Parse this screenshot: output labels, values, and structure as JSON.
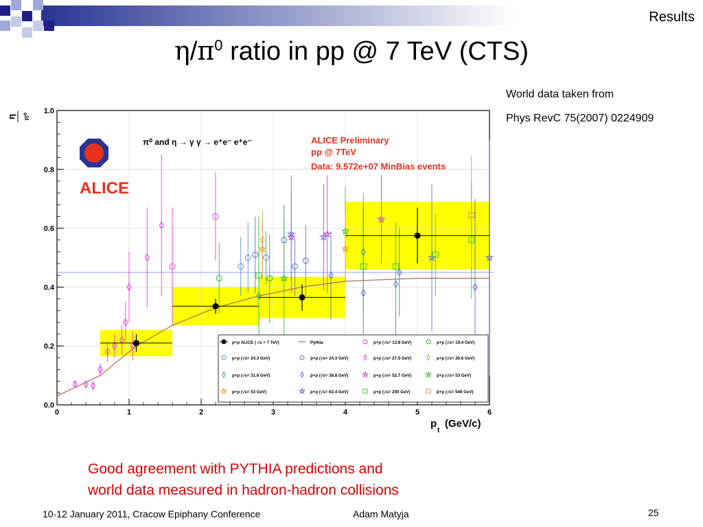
{
  "slide": {
    "section": "Results",
    "title_eta": "η",
    "title_slash": "/",
    "title_pi": "π",
    "title_sup": "0",
    "title_rest": " ratio in pp @ 7 TeV (CTS)",
    "note_line1": "World data taken from",
    "note_line2": "Phys RevC 75(2007) 0224909",
    "red_line1": "Good agreement with PYTHIA predictions and",
    "red_line2": "world data measured in hadron-hadron collisions",
    "footer_left": "10-12 January 2011, Cracow Epiphany Conference",
    "footer_author": "Adam Matyja",
    "page_number": "25"
  },
  "colors": {
    "square_blue": "#1f1f8a",
    "square_light": "#9fa8d8",
    "bar_start": "#283593",
    "alice_red": "#e8301c",
    "band_yellow": "#ffff00",
    "red_text": "#e00000"
  },
  "chart_data": {
    "type": "scatter",
    "xlabel_main": "p",
    "xlabel_sub": "t",
    "xlabel_unit": "(GeV/c)",
    "ylabel_top": "η",
    "ylabel_bottom": "π⁰",
    "xlim": [
      0,
      6
    ],
    "ylim": [
      0,
      1.0
    ],
    "x_ticks": [
      0,
      1,
      2,
      3,
      4,
      5,
      6
    ],
    "y_ticks": [
      0.0,
      0.2,
      0.4,
      0.6,
      0.8,
      1.0
    ],
    "y_tick_labels": [
      "0.0",
      "0.2",
      "0.4",
      "0.6",
      "0.8",
      "1.0"
    ],
    "grid": true,
    "logo_text": "ALICE",
    "decay_label": "π⁰ and η → γ γ → e⁺e⁻  e⁺e⁻",
    "preliminary_line1": "ALICE Preliminary",
    "preliminary_line2": "pp @ 7TeV",
    "preliminary_line3": "Data: 9.572e+07  MinBias events",
    "reference_line_y": 0.45,
    "alice": {
      "name": "p+p ALICE ( √s = 7 TeV)",
      "points": [
        {
          "x": 1.1,
          "y": 0.21,
          "xlo": 0.6,
          "xhi": 1.6,
          "sys": 0.045,
          "stat": 0.03
        },
        {
          "x": 2.2,
          "y": 0.335,
          "xlo": 1.6,
          "xhi": 2.8,
          "sys": 0.065,
          "stat": 0.025
        },
        {
          "x": 3.4,
          "y": 0.365,
          "xlo": 2.8,
          "xhi": 4.0,
          "sys": 0.07,
          "stat": 0.045
        },
        {
          "x": 5.0,
          "y": 0.575,
          "xlo": 4.0,
          "xhi": 6.0,
          "sys": 0.115,
          "stat": 0.095
        }
      ]
    },
    "pythia": {
      "name": "Pythia",
      "x": [
        0,
        0.6,
        1.1,
        1.6,
        2.2,
        2.8,
        3.4,
        4.0,
        5.0,
        6.0
      ],
      "y": [
        0.03,
        0.1,
        0.2,
        0.27,
        0.33,
        0.37,
        0.4,
        0.42,
        0.43,
        0.43
      ]
    },
    "world_data": [
      {
        "name": "p+p (√s= 13.8 GeV)",
        "color": "#e040e0",
        "marker": "circle",
        "points": [
          {
            "x": 2.2,
            "y": 0.64,
            "e": 0.15
          },
          {
            "x": 1.6,
            "y": 0.47,
            "e": 0.2
          }
        ]
      },
      {
        "name": "p+p (√s= 19.4 GeV)",
        "color": "#33b233",
        "marker": "circle",
        "points": [
          {
            "x": 2.25,
            "y": 0.43,
            "e": 0.12
          },
          {
            "x": 2.95,
            "y": 0.43,
            "e": 0.15
          }
        ]
      },
      {
        "name": "p+p (√s= 24.3 GeV)",
        "color": "#5b8fbf",
        "marker": "circle",
        "points": [
          {
            "x": 2.55,
            "y": 0.47,
            "e": 0.1
          },
          {
            "x": 2.9,
            "y": 0.5,
            "e": 0.09
          },
          {
            "x": 2.65,
            "y": 0.5,
            "e": 0.12
          }
        ]
      },
      {
        "name": "p̅+p (√s= 24.3 GeV)",
        "color": "#5b6fd6",
        "marker": "circle",
        "points": [
          {
            "x": 2.75,
            "y": 0.51,
            "e": 0.13
          },
          {
            "x": 3.15,
            "y": 0.56,
            "e": 0.12
          },
          {
            "x": 3.3,
            "y": 0.47,
            "e": 0.1
          },
          {
            "x": 3.45,
            "y": 0.49,
            "e": 0.12
          }
        ]
      },
      {
        "name": "p+p (√s= 27.5 GeV)",
        "color": "#e040e0",
        "marker": "diamond",
        "points": [
          {
            "x": 0.25,
            "y": 0.07,
            "e": 0.012
          },
          {
            "x": 0.4,
            "y": 0.07,
            "e": 0.012
          },
          {
            "x": 0.5,
            "y": 0.065,
            "e": 0.015
          },
          {
            "x": 0.6,
            "y": 0.12,
            "e": 0.02
          },
          {
            "x": 0.7,
            "y": 0.18,
            "e": 0.035
          },
          {
            "x": 0.8,
            "y": 0.2,
            "e": 0.04
          },
          {
            "x": 0.9,
            "y": 0.22,
            "e": 0.05
          },
          {
            "x": 0.95,
            "y": 0.28,
            "e": 0.07
          },
          {
            "x": 1.0,
            "y": 0.4,
            "e": 0.12
          },
          {
            "x": 1.25,
            "y": 0.5,
            "e": 0.17
          },
          {
            "x": 1.45,
            "y": 0.61,
            "e": 0.24
          },
          {
            "x": 1.05,
            "y": 0.2,
            "e": 0.05
          }
        ]
      },
      {
        "name": "p+p (√s= 30.6 GeV)",
        "color": "#e0a030",
        "marker": "diamond",
        "points": [
          {
            "x": 2.85,
            "y": 0.56,
            "e": 0.1
          }
        ]
      },
      {
        "name": "p+p (√s= 31.6 GeV)",
        "color": "#3aa0a0",
        "marker": "diamond",
        "points": [
          {
            "x": 2.8,
            "y": 0.37,
            "e": 0.18
          },
          {
            "x": 4.25,
            "y": 0.52,
            "e": 0.2
          }
        ]
      },
      {
        "name": "p̅+p (√s= 38.8 GeV)",
        "color": "#5b6fd6",
        "marker": "diamond",
        "points": [
          {
            "x": 3.8,
            "y": 0.44,
            "e": 0.15
          },
          {
            "x": 4.25,
            "y": 0.38,
            "e": 0.3
          },
          {
            "x": 4.7,
            "y": 0.41,
            "e": 0.2
          },
          {
            "x": 5.8,
            "y": 0.4,
            "e": 0.3
          },
          {
            "x": 4.75,
            "y": 0.45,
            "e": 0.15
          }
        ]
      },
      {
        "name": "p+p (√s= 52.7 GeV)",
        "color": "#d040d0",
        "marker": "star",
        "points": [
          {
            "x": 3.25,
            "y": 0.57,
            "e": 0.15
          },
          {
            "x": 3.75,
            "y": 0.58,
            "e": 0.2
          },
          {
            "x": 4.5,
            "y": 0.63,
            "e": 0.15
          }
        ]
      },
      {
        "name": "p̅+p (√s= 53 GeV)",
        "color": "#30c030",
        "marker": "star",
        "points": [
          {
            "x": 3.15,
            "y": 0.43,
            "e": 0.2
          },
          {
            "x": 4.0,
            "y": 0.59,
            "e": 0.15
          }
        ]
      },
      {
        "name": "p+p (√s= 53 GeV)",
        "color": "#e0a030",
        "marker": "star",
        "points": [
          {
            "x": 2.85,
            "y": 0.53,
            "e": 0.1
          },
          {
            "x": 4.0,
            "y": 0.53,
            "e": 0.12
          }
        ]
      },
      {
        "name": "p+p (√s= 62.4 GeV)",
        "color": "#6b6be0",
        "marker": "star",
        "points": [
          {
            "x": 3.25,
            "y": 0.58,
            "e": 0.2
          },
          {
            "x": 3.7,
            "y": 0.57,
            "e": 0.18
          },
          {
            "x": 5.2,
            "y": 0.5,
            "e": 0.25
          },
          {
            "x": 6.0,
            "y": 0.5,
            "e": 0.4
          }
        ]
      },
      {
        "name": "p+p (√s= 200 GeV)",
        "color": "#33cc33",
        "marker": "square",
        "points": [
          {
            "x": 2.8,
            "y": 0.44,
            "e": 0.2
          },
          {
            "x": 4.25,
            "y": 0.47,
            "e": 0.15
          },
          {
            "x": 4.7,
            "y": 0.47,
            "e": 0.15
          },
          {
            "x": 5.25,
            "y": 0.51,
            "e": 0.14
          },
          {
            "x": 5.75,
            "y": 0.56,
            "e": 0.2
          }
        ]
      },
      {
        "name": "p̅+p (√s= 540 GeV)",
        "color": "#e09050",
        "marker": "square",
        "points": [
          {
            "x": 5.75,
            "y": 0.645,
            "e": 0.2
          }
        ]
      }
    ]
  }
}
